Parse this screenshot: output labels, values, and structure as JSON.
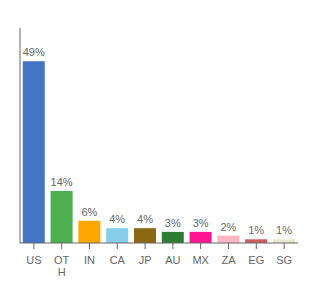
{
  "chart_data": {
    "type": "bar",
    "categories": [
      "US",
      "OT\nH",
      "IN",
      "CA",
      "JP",
      "AU",
      "MX",
      "ZA",
      "EG",
      "SG"
    ],
    "values": [
      49,
      14,
      6,
      4,
      4,
      3,
      3,
      2,
      1,
      1
    ],
    "value_labels": [
      "49%",
      "14%",
      "6%",
      "4%",
      "4%",
      "3%",
      "3%",
      "2%",
      "1%",
      "1%"
    ],
    "colors": [
      "#4472C4",
      "#4CAF50",
      "#FFA500",
      "#87CEEB",
      "#8B6914",
      "#2E7D32",
      "#FF1493",
      "#FFB6C1",
      "#CD5C5C",
      "#E8E8D0"
    ],
    "ylim": [
      0,
      58
    ],
    "yticks": [],
    "data_labels": true,
    "tick_labels": "x",
    "grid": false
  }
}
